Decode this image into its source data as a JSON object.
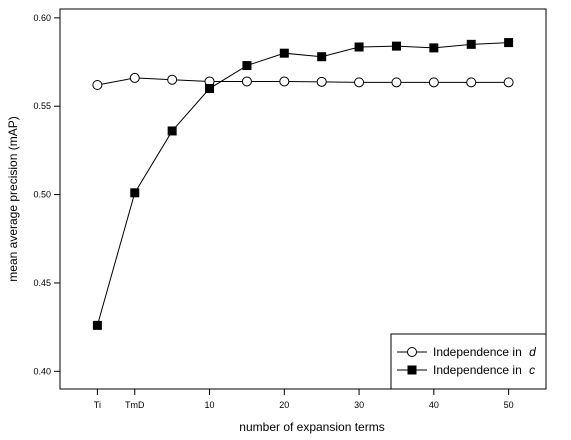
{
  "chart_data": {
    "type": "line",
    "xlabel": "number of expansion terms",
    "ylabel": "mean average precision (mAP)",
    "xlim": [
      -10,
      55
    ],
    "ylim": [
      0.39,
      0.605
    ],
    "x_ticks": [
      {
        "value": -5,
        "label": "Ti"
      },
      {
        "value": 0,
        "label": "TmD"
      },
      {
        "value": 10,
        "label": "10"
      },
      {
        "value": 20,
        "label": "20"
      },
      {
        "value": 30,
        "label": "30"
      },
      {
        "value": 40,
        "label": "40"
      },
      {
        "value": 50,
        "label": "50"
      }
    ],
    "y_ticks": [
      {
        "value": 0.4,
        "label": "0.40"
      },
      {
        "value": 0.45,
        "label": "0.45"
      },
      {
        "value": 0.5,
        "label": "0.50"
      },
      {
        "value": 0.55,
        "label": "0.55"
      },
      {
        "value": 0.6,
        "label": "0.60"
      }
    ],
    "grid": false,
    "legend_position": "bottom-right",
    "series": [
      {
        "name": "Independence in ",
        "name_italic": "d",
        "marker": "open-circle",
        "color": "#000000",
        "x": [
          -5,
          0,
          5,
          10,
          15,
          20,
          25,
          30,
          35,
          40,
          45,
          50
        ],
        "y": [
          0.562,
          0.566,
          0.565,
          0.564,
          0.564,
          0.564,
          0.5638,
          0.5635,
          0.5635,
          0.5635,
          0.5635,
          0.5635
        ]
      },
      {
        "name": "Independence in ",
        "name_italic": "c",
        "marker": "filled-square",
        "color": "#000000",
        "x": [
          -5,
          0,
          5,
          10,
          15,
          20,
          25,
          30,
          35,
          40,
          45,
          50
        ],
        "y": [
          0.426,
          0.501,
          0.536,
          0.56,
          0.573,
          0.58,
          0.578,
          0.5835,
          0.584,
          0.583,
          0.585,
          0.586
        ]
      }
    ]
  }
}
